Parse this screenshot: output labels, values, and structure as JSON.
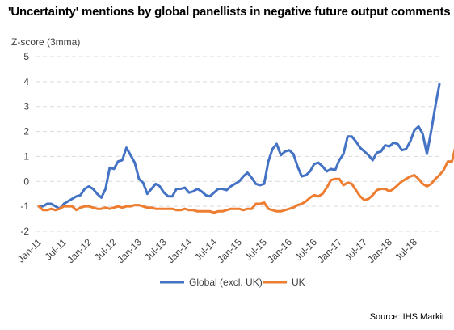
{
  "title": "'Uncertainty' mentions by global panellists in negative future output comments",
  "source": "Source: IHS Markit",
  "chart_data": {
    "type": "line",
    "ylabel": "Z-score (3mma)",
    "xlabel": "",
    "ylim": [
      -2,
      5
    ],
    "yticks": [
      -2,
      -1,
      0,
      1,
      2,
      3,
      4,
      5
    ],
    "grid": "horizontal dashed",
    "legend_position": "bottom",
    "x_tick_labels": [
      "Jan-11",
      "Jul-11",
      "Jan-12",
      "Jul-12",
      "Jan-13",
      "Jul-13",
      "Jan-14",
      "Jul-14",
      "Jan-15",
      "Jul-15",
      "Jan-16",
      "Jul-16",
      "Jan-17",
      "Jul-17",
      "Jan-18",
      "Jul-18"
    ],
    "x_start": "Jan-11",
    "frequency": "monthly",
    "series": [
      {
        "name": "Global (excl. UK)",
        "color": "#4472C4",
        "values": [
          -1.0,
          -1.0,
          -0.9,
          -0.9,
          -1.0,
          -1.1,
          -0.9,
          -0.8,
          -0.7,
          -0.6,
          -0.55,
          -0.3,
          -0.2,
          -0.3,
          -0.5,
          -0.65,
          -0.3,
          0.55,
          0.5,
          0.8,
          0.85,
          1.35,
          1.05,
          0.75,
          0.1,
          -0.05,
          -0.5,
          -0.3,
          -0.1,
          -0.2,
          -0.45,
          -0.6,
          -0.6,
          -0.3,
          -0.3,
          -0.25,
          -0.45,
          -0.4,
          -0.3,
          -0.4,
          -0.55,
          -0.6,
          -0.45,
          -0.3,
          -0.3,
          -0.35,
          -0.2,
          -0.1,
          0.0,
          0.2,
          0.35,
          0.15,
          -0.1,
          -0.15,
          -0.1,
          0.8,
          1.3,
          1.5,
          1.05,
          1.2,
          1.25,
          1.1,
          0.6,
          0.2,
          0.25,
          0.4,
          0.7,
          0.75,
          0.6,
          0.4,
          0.5,
          0.45,
          0.85,
          1.1,
          1.8,
          1.8,
          1.6,
          1.35,
          1.2,
          1.05,
          0.85,
          1.15,
          1.2,
          1.45,
          1.4,
          1.55,
          1.5,
          1.25,
          1.3,
          1.6,
          2.05,
          2.2,
          1.9,
          1.1,
          2.0,
          3.0,
          3.9
        ]
      },
      {
        "name": "UK",
        "color": "#ED7D31",
        "values": [
          -1.0,
          -1.15,
          -1.15,
          -1.1,
          -1.15,
          -1.1,
          -1.0,
          -1.0,
          -1.0,
          -1.15,
          -1.05,
          -1.0,
          -1.0,
          -1.05,
          -1.1,
          -1.1,
          -1.05,
          -1.1,
          -1.05,
          -1.0,
          -1.05,
          -1.0,
          -1.0,
          -0.95,
          -0.95,
          -1.0,
          -1.05,
          -1.05,
          -1.1,
          -1.1,
          -1.1,
          -1.1,
          -1.1,
          -1.15,
          -1.15,
          -1.1,
          -1.15,
          -1.15,
          -1.2,
          -1.2,
          -1.2,
          -1.2,
          -1.25,
          -1.2,
          -1.2,
          -1.15,
          -1.1,
          -1.1,
          -1.1,
          -1.15,
          -1.1,
          -1.1,
          -0.9,
          -0.9,
          -0.85,
          -1.1,
          -1.15,
          -1.2,
          -1.2,
          -1.15,
          -1.1,
          -1.05,
          -0.95,
          -0.9,
          -0.8,
          -0.65,
          -0.55,
          -0.6,
          -0.5,
          -0.25,
          0.05,
          0.1,
          0.1,
          -0.15,
          -0.05,
          -0.1,
          -0.35,
          -0.6,
          -0.75,
          -0.7,
          -0.55,
          -0.35,
          -0.3,
          -0.3,
          -0.4,
          -0.3,
          -0.15,
          0.0,
          0.1,
          0.2,
          0.25,
          0.1,
          -0.1,
          -0.2,
          -0.1,
          0.1,
          0.25,
          0.45,
          0.8,
          0.8,
          1.5
        ]
      }
    ]
  }
}
